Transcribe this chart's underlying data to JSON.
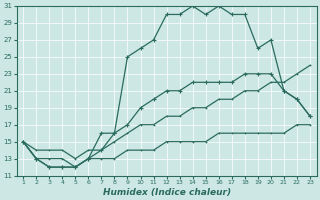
{
  "xlabel": "Humidex (Indice chaleur)",
  "xlim": [
    1,
    23
  ],
  "ylim": [
    11,
    31
  ],
  "xticks": [
    1,
    2,
    3,
    4,
    5,
    6,
    7,
    8,
    9,
    10,
    11,
    12,
    13,
    14,
    15,
    16,
    17,
    18,
    19,
    20,
    21,
    22,
    23
  ],
  "yticks": [
    11,
    13,
    15,
    17,
    19,
    21,
    23,
    25,
    27,
    29,
    31
  ],
  "bg_color": "#cde8e4",
  "line_color": "#2a6b5e",
  "grid_color": "#b8d8d4",
  "series_jagged": [
    15,
    13,
    12,
    12,
    12,
    13,
    16,
    16,
    25,
    26,
    27,
    30,
    30,
    31,
    30,
    31,
    30,
    30,
    26,
    27,
    21,
    20,
    18
  ],
  "series_mid_high": [
    15,
    13,
    12,
    12,
    12,
    13,
    14,
    16,
    17,
    19,
    20,
    21,
    21,
    22,
    22,
    22,
    22,
    23,
    23,
    23,
    21,
    20,
    18
  ],
  "series_upper_diag": [
    15,
    14,
    14,
    14,
    13,
    14,
    14,
    15,
    16,
    17,
    17,
    18,
    18,
    19,
    19,
    20,
    20,
    21,
    21,
    22,
    22,
    23,
    24
  ],
  "series_lower_diag": [
    15,
    13,
    13,
    13,
    12,
    13,
    13,
    13,
    14,
    14,
    14,
    15,
    15,
    15,
    15,
    16,
    16,
    16,
    16,
    16,
    16,
    17,
    17
  ],
  "x": [
    1,
    2,
    3,
    4,
    5,
    6,
    7,
    8,
    9,
    10,
    11,
    12,
    13,
    14,
    15,
    16,
    17,
    18,
    19,
    20,
    21,
    22,
    23
  ]
}
